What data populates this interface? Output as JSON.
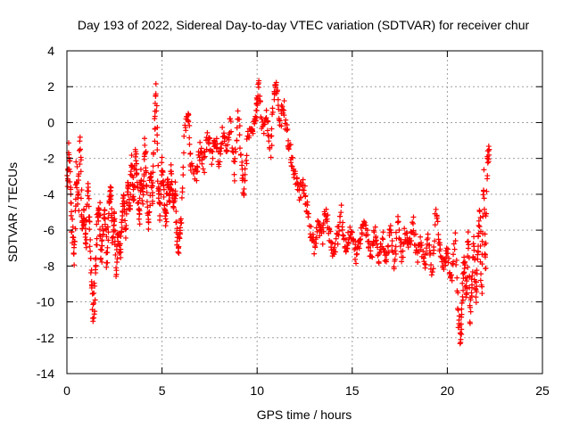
{
  "chart_data": {
    "type": "scatter",
    "title": "Day 193 of 2022, Sidereal Day-to-day VTEC variation (SDTVAR) for receiver chur",
    "xlabel": "GPS time / hours",
    "ylabel": "SDTVAR / TECUs",
    "xlim": [
      0,
      25
    ],
    "ylim": [
      -14,
      4
    ],
    "xticks": [
      0,
      5,
      10,
      15,
      20,
      25
    ],
    "yticks": [
      -14,
      -12,
      -10,
      -8,
      -6,
      -4,
      -2,
      0,
      2,
      4
    ],
    "grid": true,
    "marker": "+",
    "series_color": "#ff0000",
    "series": [
      {
        "name": "SDTVAR",
        "anchors": [
          [
            0.0,
            -3.5
          ],
          [
            0.1,
            -1.5
          ],
          [
            0.2,
            -4.0
          ],
          [
            0.3,
            -6.5
          ],
          [
            0.4,
            -7.5
          ],
          [
            0.5,
            -2.5
          ],
          [
            0.6,
            -4.5
          ],
          [
            0.7,
            -0.5
          ],
          [
            0.8,
            -6.0
          ],
          [
            0.9,
            -5.0
          ],
          [
            1.0,
            -7.0
          ],
          [
            1.1,
            -3.5
          ],
          [
            1.2,
            -6.0
          ],
          [
            1.3,
            -9.0
          ],
          [
            1.4,
            -11.0
          ],
          [
            1.5,
            -8.5
          ],
          [
            1.6,
            -5.5
          ],
          [
            1.7,
            -4.5
          ],
          [
            1.8,
            -7.5
          ],
          [
            1.9,
            -6.0
          ],
          [
            2.0,
            -5.0
          ],
          [
            2.1,
            -8.0
          ],
          [
            2.2,
            -4.5
          ],
          [
            2.3,
            -3.5
          ],
          [
            2.4,
            -6.5
          ],
          [
            2.5,
            -5.0
          ],
          [
            2.6,
            -8.5
          ],
          [
            2.7,
            -6.0
          ],
          [
            2.8,
            -7.5
          ],
          [
            2.9,
            -5.5
          ],
          [
            3.0,
            -4.0
          ],
          [
            3.1,
            -6.5
          ],
          [
            3.2,
            -3.0
          ],
          [
            3.3,
            -5.0
          ],
          [
            3.4,
            -2.0
          ],
          [
            3.5,
            -4.5
          ],
          [
            3.6,
            -1.5
          ],
          [
            3.7,
            -3.5
          ],
          [
            3.8,
            -5.5
          ],
          [
            3.9,
            -3.0
          ],
          [
            4.0,
            -4.5
          ],
          [
            4.1,
            -1.0
          ],
          [
            4.2,
            -3.5
          ],
          [
            4.3,
            -6.0
          ],
          [
            4.4,
            -2.5
          ],
          [
            4.5,
            -4.5
          ],
          [
            4.6,
            -0.5
          ],
          [
            4.7,
            2.0
          ],
          [
            4.8,
            -3.5
          ],
          [
            4.9,
            -5.0
          ],
          [
            5.0,
            -2.0
          ],
          [
            5.1,
            -4.0
          ],
          [
            5.2,
            -5.5
          ],
          [
            5.3,
            -3.0
          ],
          [
            5.4,
            -4.5
          ],
          [
            5.5,
            -2.5
          ],
          [
            5.6,
            -5.0
          ],
          [
            5.7,
            -3.5
          ],
          [
            5.8,
            -6.5
          ],
          [
            5.9,
            -7.0
          ],
          [
            6.0,
            -5.5
          ],
          [
            6.2,
            -0.5
          ],
          [
            6.4,
            0.5
          ],
          [
            6.5,
            -2.5
          ],
          [
            6.8,
            -3.0
          ],
          [
            7.0,
            -1.5
          ],
          [
            7.2,
            -2.5
          ],
          [
            7.4,
            -0.5
          ],
          [
            7.6,
            -2.0
          ],
          [
            7.8,
            -1.0
          ],
          [
            8.0,
            -2.0
          ],
          [
            8.2,
            -0.5
          ],
          [
            8.4,
            -1.5
          ],
          [
            8.6,
            0.0
          ],
          [
            8.8,
            -3.0
          ],
          [
            9.0,
            0.5
          ],
          [
            9.2,
            -2.5
          ],
          [
            9.3,
            -4.0
          ],
          [
            9.5,
            -1.0
          ],
          [
            9.7,
            -0.5
          ],
          [
            9.9,
            0.0
          ],
          [
            10.0,
            1.0
          ],
          [
            10.1,
            2.2
          ],
          [
            10.3,
            -0.5
          ],
          [
            10.5,
            0.5
          ],
          [
            10.7,
            -1.5
          ],
          [
            10.9,
            1.5
          ],
          [
            11.0,
            2.0
          ],
          [
            11.2,
            0.0
          ],
          [
            11.4,
            1.0
          ],
          [
            11.6,
            -1.0
          ],
          [
            11.8,
            -2.0
          ],
          [
            12.0,
            -3.0
          ],
          [
            12.2,
            -4.0
          ],
          [
            12.4,
            -3.5
          ],
          [
            12.6,
            -4.5
          ],
          [
            12.8,
            -6.0
          ],
          [
            13.0,
            -7.0
          ],
          [
            13.2,
            -5.5
          ],
          [
            13.4,
            -6.5
          ],
          [
            13.6,
            -5.0
          ],
          [
            13.8,
            -6.0
          ],
          [
            14.0,
            -7.5
          ],
          [
            14.2,
            -6.5
          ],
          [
            14.4,
            -5.0
          ],
          [
            14.6,
            -7.0
          ],
          [
            14.8,
            -6.5
          ],
          [
            15.0,
            -6.0
          ],
          [
            15.2,
            -7.5
          ],
          [
            15.4,
            -6.5
          ],
          [
            15.6,
            -5.5
          ],
          [
            15.8,
            -6.5
          ],
          [
            16.0,
            -7.5
          ],
          [
            16.2,
            -6.0
          ],
          [
            16.4,
            -7.5
          ],
          [
            16.6,
            -6.5
          ],
          [
            16.8,
            -7.8
          ],
          [
            17.0,
            -6.0
          ],
          [
            17.2,
            -8.0
          ],
          [
            17.4,
            -5.5
          ],
          [
            17.6,
            -7.5
          ],
          [
            17.8,
            -6.0
          ],
          [
            18.0,
            -7.0
          ],
          [
            18.2,
            -5.5
          ],
          [
            18.4,
            -7.5
          ],
          [
            18.6,
            -6.5
          ],
          [
            18.8,
            -8.0
          ],
          [
            19.0,
            -6.5
          ],
          [
            19.2,
            -8.5
          ],
          [
            19.4,
            -5.0
          ],
          [
            19.6,
            -7.0
          ],
          [
            19.8,
            -8.0
          ],
          [
            20.0,
            -7.0
          ],
          [
            20.2,
            -9.0
          ],
          [
            20.4,
            -6.5
          ],
          [
            20.6,
            -11.0
          ],
          [
            20.7,
            -12.3
          ],
          [
            20.8,
            -9.5
          ],
          [
            20.9,
            -7.5
          ],
          [
            21.0,
            -10.0
          ],
          [
            21.1,
            -6.0
          ],
          [
            21.2,
            -11.0
          ],
          [
            21.3,
            -8.5
          ],
          [
            21.4,
            -6.5
          ],
          [
            21.5,
            -10.0
          ],
          [
            21.6,
            -7.5
          ],
          [
            21.7,
            -5.0
          ],
          [
            21.8,
            -9.5
          ],
          [
            21.9,
            -3.0
          ],
          [
            22.0,
            -8.5
          ],
          [
            22.1,
            -2.0
          ],
          [
            22.2,
            -1.5
          ]
        ]
      }
    ]
  }
}
